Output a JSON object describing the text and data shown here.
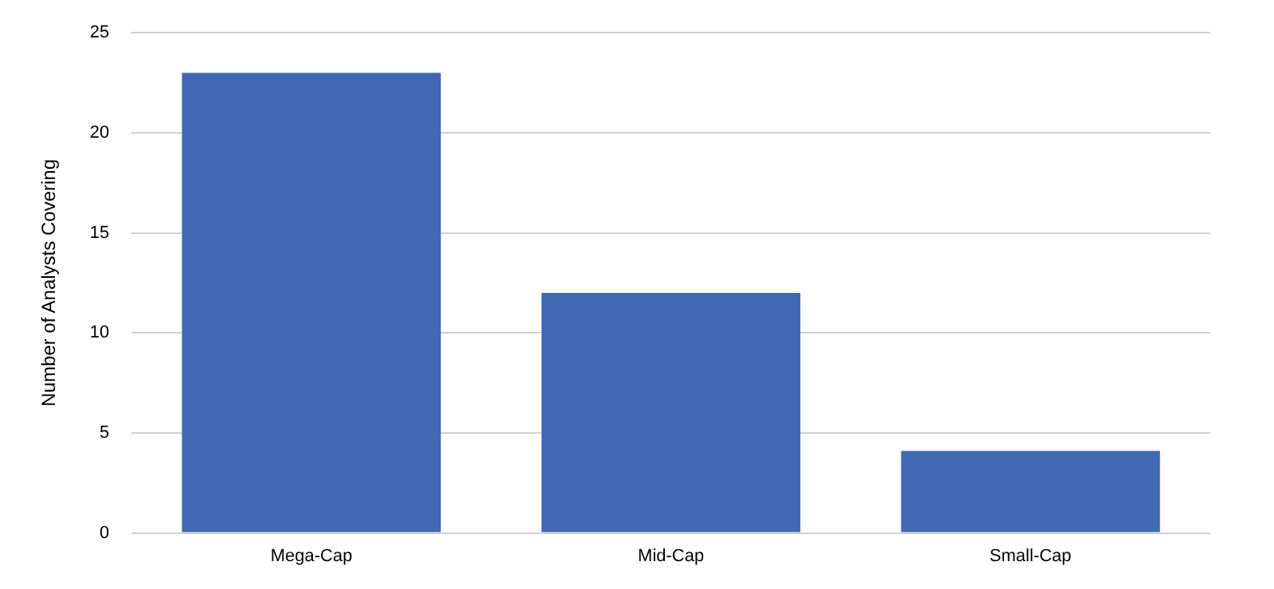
{
  "chart_data": {
    "type": "bar",
    "ylabel": "Number of Analysts Covering",
    "categories": [
      "Mega-Cap",
      "Mid-Cap",
      "Small-Cap"
    ],
    "values": [
      23,
      12,
      4.1
    ],
    "color": "#4169b3",
    "ylim": [
      0,
      25
    ],
    "yticks": [
      0,
      5,
      10,
      15,
      20,
      25
    ],
    "grid": "y"
  }
}
